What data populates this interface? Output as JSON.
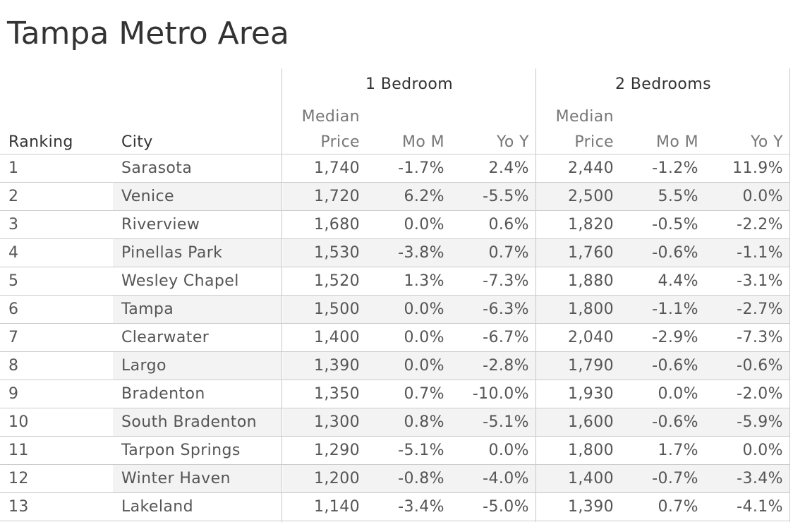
{
  "title": "Tampa Metro Area",
  "chart_data": {
    "type": "table",
    "title": "Tampa Metro Area",
    "column_groups": [
      "1 Bedroom",
      "2 Bedrooms"
    ],
    "row_headers": [
      "Ranking",
      "City"
    ],
    "group_columns": [
      [
        "Median",
        "Price"
      ],
      [
        "Mo M"
      ],
      [
        "Yo Y"
      ]
    ],
    "rows": [
      {
        "rank": "1",
        "city": "Sarasota",
        "b1": [
          "1,740",
          "-1.7%",
          "2.4%"
        ],
        "b2": [
          "2,440",
          "-1.2%",
          "11.9%"
        ]
      },
      {
        "rank": "2",
        "city": "Venice",
        "b1": [
          "1,720",
          "6.2%",
          "-5.5%"
        ],
        "b2": [
          "2,500",
          "5.5%",
          "0.0%"
        ]
      },
      {
        "rank": "3",
        "city": "Riverview",
        "b1": [
          "1,680",
          "0.0%",
          "0.6%"
        ],
        "b2": [
          "1,820",
          "-0.5%",
          "-2.2%"
        ]
      },
      {
        "rank": "4",
        "city": "Pinellas Park",
        "b1": [
          "1,530",
          "-3.8%",
          "0.7%"
        ],
        "b2": [
          "1,760",
          "-0.6%",
          "-1.1%"
        ]
      },
      {
        "rank": "5",
        "city": "Wesley Chapel",
        "b1": [
          "1,520",
          "1.3%",
          "-7.3%"
        ],
        "b2": [
          "1,880",
          "4.4%",
          "-3.1%"
        ]
      },
      {
        "rank": "6",
        "city": "Tampa",
        "b1": [
          "1,500",
          "0.0%",
          "-6.3%"
        ],
        "b2": [
          "1,800",
          "-1.1%",
          "-2.7%"
        ]
      },
      {
        "rank": "7",
        "city": "Clearwater",
        "b1": [
          "1,400",
          "0.0%",
          "-6.7%"
        ],
        "b2": [
          "2,040",
          "-2.9%",
          "-7.3%"
        ]
      },
      {
        "rank": "8",
        "city": "Largo",
        "b1": [
          "1,390",
          "0.0%",
          "-2.8%"
        ],
        "b2": [
          "1,790",
          "-0.6%",
          "-0.6%"
        ]
      },
      {
        "rank": "9",
        "city": "Bradenton",
        "b1": [
          "1,350",
          "0.7%",
          "-10.0%"
        ],
        "b2": [
          "1,930",
          "0.0%",
          "-2.0%"
        ]
      },
      {
        "rank": "10",
        "city": "South Bradenton",
        "b1": [
          "1,300",
          "0.8%",
          "-5.1%"
        ],
        "b2": [
          "1,600",
          "-0.6%",
          "-5.9%"
        ]
      },
      {
        "rank": "11",
        "city": "Tarpon Springs",
        "b1": [
          "1,290",
          "-5.1%",
          "0.0%"
        ],
        "b2": [
          "1,800",
          "1.7%",
          "0.0%"
        ]
      },
      {
        "rank": "12",
        "city": "Winter Haven",
        "b1": [
          "1,200",
          "-0.8%",
          "-4.0%"
        ],
        "b2": [
          "1,400",
          "-0.7%",
          "-3.4%"
        ]
      },
      {
        "rank": "13",
        "city": "Lakeland",
        "b1": [
          "1,140",
          "-3.4%",
          "-5.0%"
        ],
        "b2": [
          "1,390",
          "0.7%",
          "-4.1%"
        ]
      }
    ]
  }
}
